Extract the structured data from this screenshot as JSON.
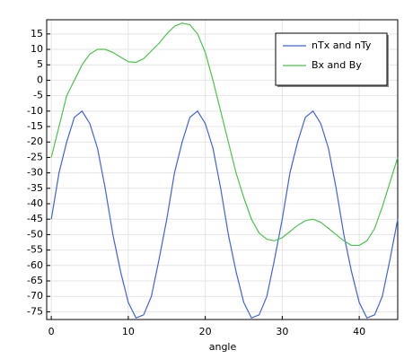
{
  "chart_data": {
    "type": "line",
    "xlabel": "angle",
    "x": [
      0,
      1,
      2,
      3,
      4,
      5,
      6,
      7,
      8,
      9,
      10,
      11,
      12,
      13,
      14,
      15,
      16,
      17,
      18,
      19,
      20,
      21,
      22,
      23,
      24,
      25,
      26,
      27,
      28,
      29,
      30,
      31,
      32,
      33,
      34,
      35,
      36,
      37,
      38,
      39,
      40,
      41,
      42,
      43,
      44,
      45
    ],
    "series": [
      {
        "name": "nTx and nTy",
        "color": "#3f63e0",
        "values": [
          -45,
          -30,
          -20,
          -12,
          -10,
          -14,
          -22,
          -35,
          -50,
          -62,
          -72,
          -77,
          -76,
          -70,
          -58,
          -45,
          -30,
          -20,
          -12,
          -10,
          -14,
          -22,
          -35,
          -50,
          -62,
          -72,
          -77,
          -76,
          -70,
          -58,
          -45,
          -30,
          -20,
          -12,
          -10,
          -14,
          -22,
          -35,
          -50,
          -62,
          -72,
          -77,
          -76,
          -70,
          -58,
          -45
        ]
      },
      {
        "name": "Bx and By",
        "color": "#4cc44c",
        "values": [
          -25,
          -15,
          -5,
          0,
          5,
          8.5,
          10,
          10,
          9,
          7.5,
          6,
          5.8,
          7,
          9.5,
          12,
          15,
          17.5,
          18.5,
          18,
          15,
          9,
          0,
          -10,
          -20,
          -30,
          -38,
          -45,
          -49.5,
          -51.5,
          -52,
          -51,
          -49,
          -47,
          -45.5,
          -45,
          -46,
          -48,
          -50,
          -52,
          -53.5,
          -53.5,
          -52,
          -48,
          -41,
          -33,
          -25
        ]
      }
    ],
    "xlim": [
      -0.6,
      45
    ],
    "ylim": [
      -77.5,
      19.6
    ],
    "xticks": [
      0,
      10,
      20,
      30,
      40
    ],
    "yticks": [
      -75,
      -70,
      -65,
      -60,
      -55,
      -50,
      -45,
      -40,
      -35,
      -30,
      -25,
      -20,
      -15,
      -10,
      -5,
      0,
      5,
      10,
      15
    ],
    "grid": true,
    "legend": "upper right"
  }
}
